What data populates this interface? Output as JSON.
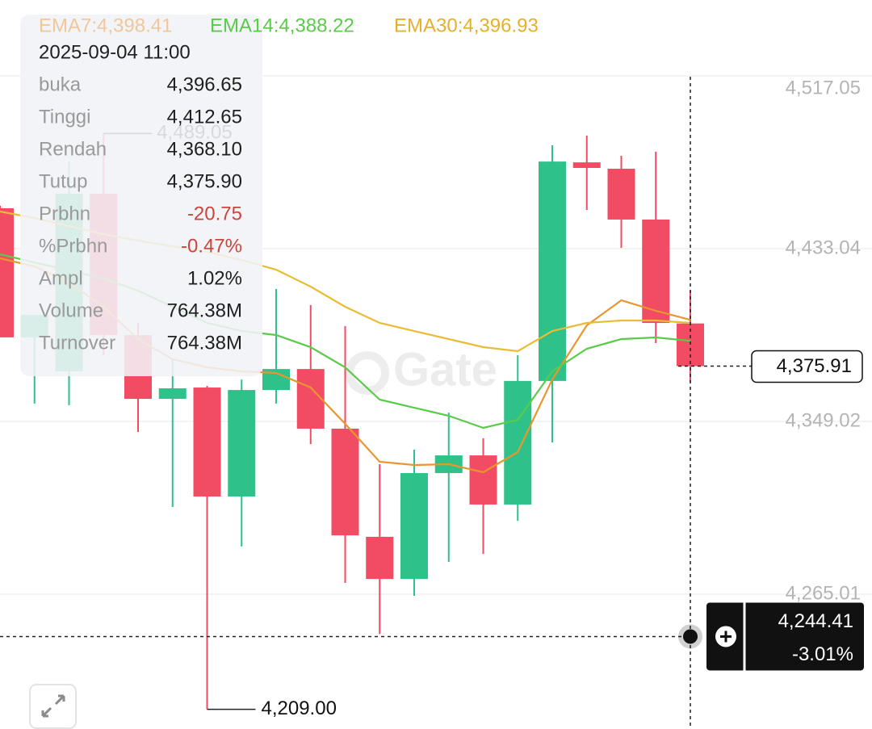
{
  "chart_data": {
    "type": "candlestick",
    "categories": [
      null,
      null,
      null,
      null,
      null,
      null,
      null,
      null,
      null,
      null,
      null,
      null,
      null,
      null,
      null,
      null,
      null,
      null,
      null,
      null,
      null
    ],
    "candles": {
      "open": [
        4452.7,
        4389.9,
        4373.4,
        4459.7,
        4391.0,
        4360.0,
        4365.5,
        4312.5,
        4364.3,
        4374.5,
        4345.5,
        4292.9,
        4272.4,
        4323.9,
        4332.5,
        4308.6,
        4368.7,
        4475.0,
        4471.9,
        4447.2,
        4396.65
      ],
      "high": [
        4453.9,
        4400.8,
        4475.4,
        4489.05,
        4396.9,
        4379.3,
        4366.3,
        4369.4,
        4413.4,
        4405.6,
        4395.4,
        4328.2,
        4335.3,
        4353.3,
        4340.8,
        4381.2,
        4483.3,
        4488.0,
        4478.2,
        4480.2,
        4412.65
      ],
      "low": [
        4389.9,
        4357.7,
        4356.9,
        4381.2,
        4343.9,
        4307.4,
        4209.0,
        4288.2,
        4357.7,
        4338.0,
        4270.5,
        4245.6,
        4264.2,
        4280.7,
        4284.6,
        4300.7,
        4338.8,
        4451.9,
        4433.4,
        4387.1,
        4368.1
      ],
      "close": [
        4389.9,
        4400.8,
        4459.7,
        4391.0,
        4360.0,
        4365.1,
        4312.5,
        4364.3,
        4374.5,
        4345.5,
        4293.6,
        4272.4,
        4323.9,
        4332.5,
        4308.6,
        4368.7,
        4475.4,
        4472.3,
        4447.2,
        4396.9,
        4375.9
      ],
      "up_color": "#2ec28a",
      "down_color": "#f24c64"
    },
    "series": [
      {
        "name": "EMA7:4,398.41",
        "color": "#e8962e",
        "legend_color": "#f1c79a",
        "values": [
          4428.33,
          4424.4,
          4416.55,
          4404.77,
          4389.07,
          4379.25,
          4375.32,
          4373.36,
          4372.58,
          4365.51,
          4347.84,
          4329.39,
          4327.82,
          4328.21,
          4324.29,
          4334.1,
          4369.44,
          4395.74,
          4407.91,
          4402.81,
          4398.41
        ]
      },
      {
        "name": "EMA14:4,388.22",
        "color": "#5acb48",
        "legend_color": "#5acb48",
        "values": [
          4430.29,
          4426.36,
          4422.44,
          4418.51,
          4412.62,
          4404.77,
          4396.92,
          4392.99,
          4391.03,
          4385.14,
          4375.32,
          4359.62,
          4355.69,
          4351.77,
          4345.88,
          4349.81,
          4373.36,
          4384.35,
          4389.07,
          4389.85,
          4388.22
        ]
      },
      {
        "name": "EMA30:4,396.93",
        "color": "#eabc35",
        "legend_color": "#e6b02a",
        "values": [
          4451.1,
          4447.96,
          4444.03,
          4440.1,
          4436.96,
          4434.21,
          4431.47,
          4427.54,
          4422.83,
          4414.58,
          4404.77,
          4396.92,
          4392.99,
          4389.07,
          4385.14,
          4383.18,
          4392.99,
          4396.92,
          4398.1,
          4398.1,
          4396.93
        ]
      }
    ],
    "ylim": [
      4199.43,
      4553.97
    ],
    "yticks": [
      {
        "value": 4517.05,
        "label": "4,517.05"
      },
      {
        "value": 4433.04,
        "label": "4,433.04"
      },
      {
        "value": 4349.02,
        "label": "4,349.02"
      },
      {
        "value": 4265.01,
        "label": "4,265.01"
      }
    ],
    "grid": true,
    "high_marker": {
      "value": 4489.05,
      "label": "4,489.05"
    },
    "low_marker": {
      "value": 4209.0,
      "label": "4,209.00"
    },
    "last_price": {
      "value": 4375.91,
      "label": "4,375.91"
    },
    "crosshair": {
      "price": {
        "value": 4244.41,
        "label": "4,244.41"
      },
      "change": "-3.01%"
    },
    "watermark": "Gate",
    "tooltip": {
      "date": "2025-09-04 11:00",
      "rows": [
        {
          "label": "buka",
          "value": "4,396.65",
          "color": "#1f1f1f"
        },
        {
          "label": "Tinggi",
          "value": "4,412.65",
          "color": "#1f1f1f"
        },
        {
          "label": "Rendah",
          "value": "4,368.10",
          "color": "#1f1f1f"
        },
        {
          "label": "Tutup",
          "value": "4,375.90",
          "color": "#1f1f1f"
        },
        {
          "label": "Prbhn",
          "value": "-20.75",
          "color": "#c9463d"
        },
        {
          "label": "%Prbhn",
          "value": "-0.47%",
          "color": "#c9463d"
        },
        {
          "label": "Ampl",
          "value": "1.02%",
          "color": "#1f1f1f"
        },
        {
          "label": "Volume",
          "value": "764.38M",
          "color": "#1f1f1f"
        },
        {
          "label": "Turnover",
          "value": "764.38M",
          "color": "#1f1f1f"
        }
      ]
    }
  }
}
